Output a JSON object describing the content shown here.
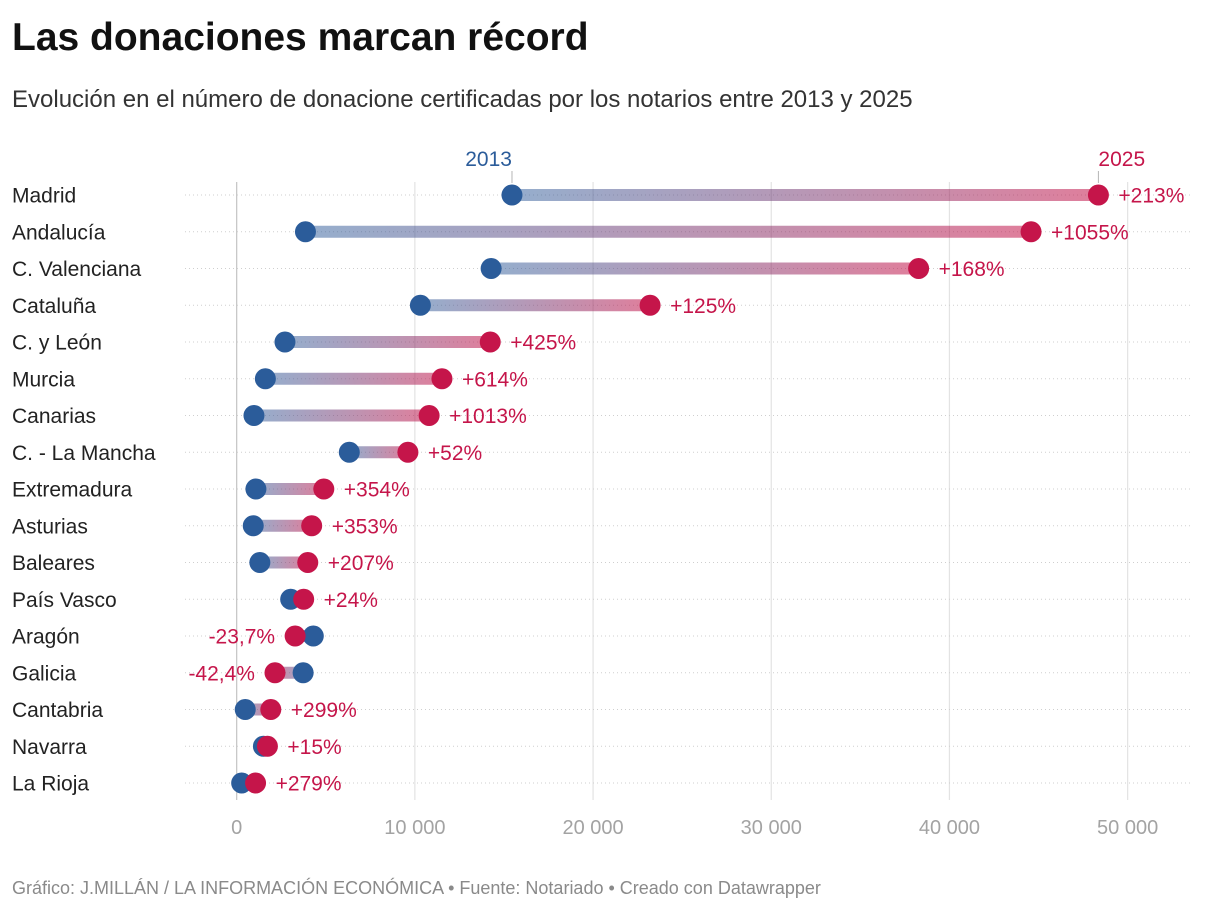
{
  "title": "Las donaciones marcan récord",
  "subtitle": "Evolución en el número de donacione certificadas por los notarios entre 2013 y 2025",
  "footer": "Gráfico: J.MILLÁN / LA INFORMACIÓN ECONÓMICA • Fuente: Notariado • Creado con Datawrapper",
  "chart_data": {
    "type": "scatter",
    "categories": [
      "Madrid",
      "Andalucía",
      "C. Valenciana",
      "Cataluña",
      "C. y León",
      "Murcia",
      "Canarias",
      "C. - La Mancha",
      "Extremadura",
      "Asturias",
      "Baleares",
      "País Vasco",
      "Aragón",
      "Galicia",
      "Cantabria",
      "Navarra",
      "La Rioja"
    ],
    "series": [
      {
        "name": "2013",
        "color": "#2b5c9a",
        "values": [
          15450,
          3860,
          14280,
          10310,
          2710,
          1610,
          970,
          6320,
          1080,
          930,
          1300,
          3030,
          4300,
          3730,
          480,
          1500,
          280
        ]
      },
      {
        "name": "2025",
        "color": "#c5154a",
        "values": [
          48360,
          44580,
          38270,
          23200,
          14230,
          11520,
          10800,
          9610,
          4890,
          4210,
          3990,
          3760,
          3280,
          2150,
          1915,
          1725,
          1060
        ]
      }
    ],
    "change_labels": [
      "+213%",
      "+1055%",
      "+168%",
      "+125%",
      "+425%",
      "+614%",
      "+1013%",
      "+52%",
      "+354%",
      "+353%",
      "+207%",
      "+24%",
      "-23,7%",
      "-42,4%",
      "+299%",
      "+15%",
      "+279%"
    ],
    "xlim": [
      -2900,
      53500
    ],
    "xticks": [
      0,
      10000,
      20000,
      30000,
      40000,
      50000
    ],
    "xtick_labels": [
      "0",
      "10 000",
      "20 000",
      "30 000",
      "40 000",
      "50 000"
    ],
    "grid": true
  }
}
